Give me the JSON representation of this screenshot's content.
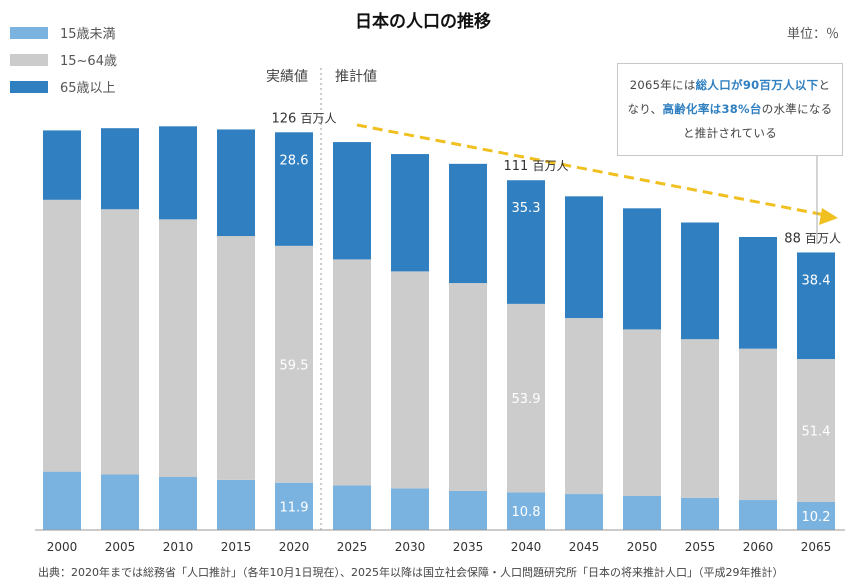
{
  "title": "日本の人口の推移",
  "unit_label": "単位：％",
  "legend": [
    {
      "label": "15歳未満",
      "color": "#7ab3e0"
    },
    {
      "label": "15~64歳",
      "color": "#cccccc"
    },
    {
      "label": "65歳以上",
      "color": "#2f7fc1"
    }
  ],
  "sections": {
    "actual": "実績値",
    "projected": "推計値"
  },
  "totals": [
    {
      "year": "2020",
      "value": "126",
      "unit": "百万人"
    },
    {
      "year": "2040",
      "value": "111",
      "unit": "百万人"
    },
    {
      "year": "2065",
      "value": "88",
      "unit": "百万人"
    }
  ],
  "note": {
    "line1_pre": "2065年には",
    "line1_hl": "総人口が90百万人以下",
    "line1_post": "と",
    "line2_pre": "なり、",
    "line2_hl": "高齢化率は38%台",
    "line2_post": "の水準になる",
    "line3": "と推計されている"
  },
  "source": "出典：2020年までは総務省「人口推計」（各年10月1日現在）、2025年以降は国立社会保障・人口問題研究所「日本の将来推計人口」（平成29年推計）",
  "colors": {
    "under15": "#7ab3e0",
    "age15_64": "#cccccc",
    "over65": "#2f7fc1",
    "trend_arrow": "#f0c020"
  },
  "chart_data": {
    "type": "bar",
    "stacked": true,
    "categories": [
      "2000",
      "2005",
      "2010",
      "2015",
      "2020",
      "2025",
      "2030",
      "2035",
      "2040",
      "2045",
      "2050",
      "2055",
      "2060",
      "2065"
    ],
    "series": [
      {
        "name": "15歳未満",
        "values": [
          18.5,
          17.6,
          16.8,
          15.9,
          15.0,
          14.1,
          13.2,
          12.4,
          11.9,
          11.4,
          10.8,
          10.2,
          9.5,
          8.9
        ]
      },
      {
        "name": "15~64歳",
        "values": [
          86.2,
          84.1,
          81.7,
          77.3,
          75.1,
          71.7,
          68.8,
          65.9,
          59.8,
          55.8,
          52.8,
          50.3,
          48.0,
          45.3
        ]
      },
      {
        "name": "65歳以上",
        "values": [
          22.0,
          25.7,
          29.5,
          33.8,
          36.0,
          37.2,
          37.2,
          37.8,
          39.2,
          38.6,
          38.4,
          37.0,
          35.4,
          33.8
        ]
      }
    ],
    "data_labels": [
      {
        "category": "2020",
        "series": "15歳未満",
        "text": "11.9"
      },
      {
        "category": "2020",
        "series": "15~64歳",
        "text": "59.5"
      },
      {
        "category": "2020",
        "series": "65歳以上",
        "text": "28.6"
      },
      {
        "category": "2040",
        "series": "15歳未満",
        "text": "10.8"
      },
      {
        "category": "2040",
        "series": "15~64歳",
        "text": "53.9"
      },
      {
        "category": "2040",
        "series": "65歳以上",
        "text": "35.3"
      },
      {
        "category": "2065",
        "series": "15歳未満",
        "text": "10.2"
      },
      {
        "category": "2065",
        "series": "15~64歳",
        "text": "51.4"
      },
      {
        "category": "2065",
        "series": "65歳以上",
        "text": "38.4"
      }
    ],
    "ylim": [
      0,
      130
    ],
    "xlabel": "",
    "ylabel": "",
    "grid": false,
    "legend_position": "top-left"
  }
}
